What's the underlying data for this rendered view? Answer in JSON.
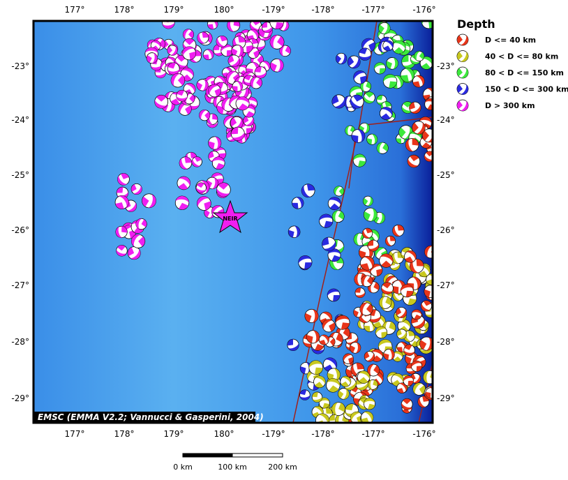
{
  "map": {
    "lon_labels": [
      "177°",
      "178°",
      "179°",
      "180°",
      "-179°",
      "-178°",
      "-177°",
      "-176°"
    ],
    "lat_labels": [
      "-23°",
      "-24°",
      "-25°",
      "-26°",
      "-27°",
      "-28°",
      "-29°"
    ],
    "legend": {
      "title": "Depth",
      "items": [
        {
          "label": "D <= 40 km",
          "color": "#e8351a"
        },
        {
          "label": "40 < D <= 80 km",
          "color": "#c8c81e"
        },
        {
          "label": "80 < D <= 150 km",
          "color": "#3ce83c"
        },
        {
          "label": "150 < D <= 300 km",
          "color": "#2a2ae0"
        },
        {
          "label": "D > 300 km",
          "color": "#f01ef0"
        }
      ]
    },
    "station": "NEIR",
    "credit": "EMSC (EMMA V2.2; Vannucci & Gasperini, 2004)",
    "scale_labels": [
      "0 km",
      "100 km",
      "200 km"
    ]
  }
}
